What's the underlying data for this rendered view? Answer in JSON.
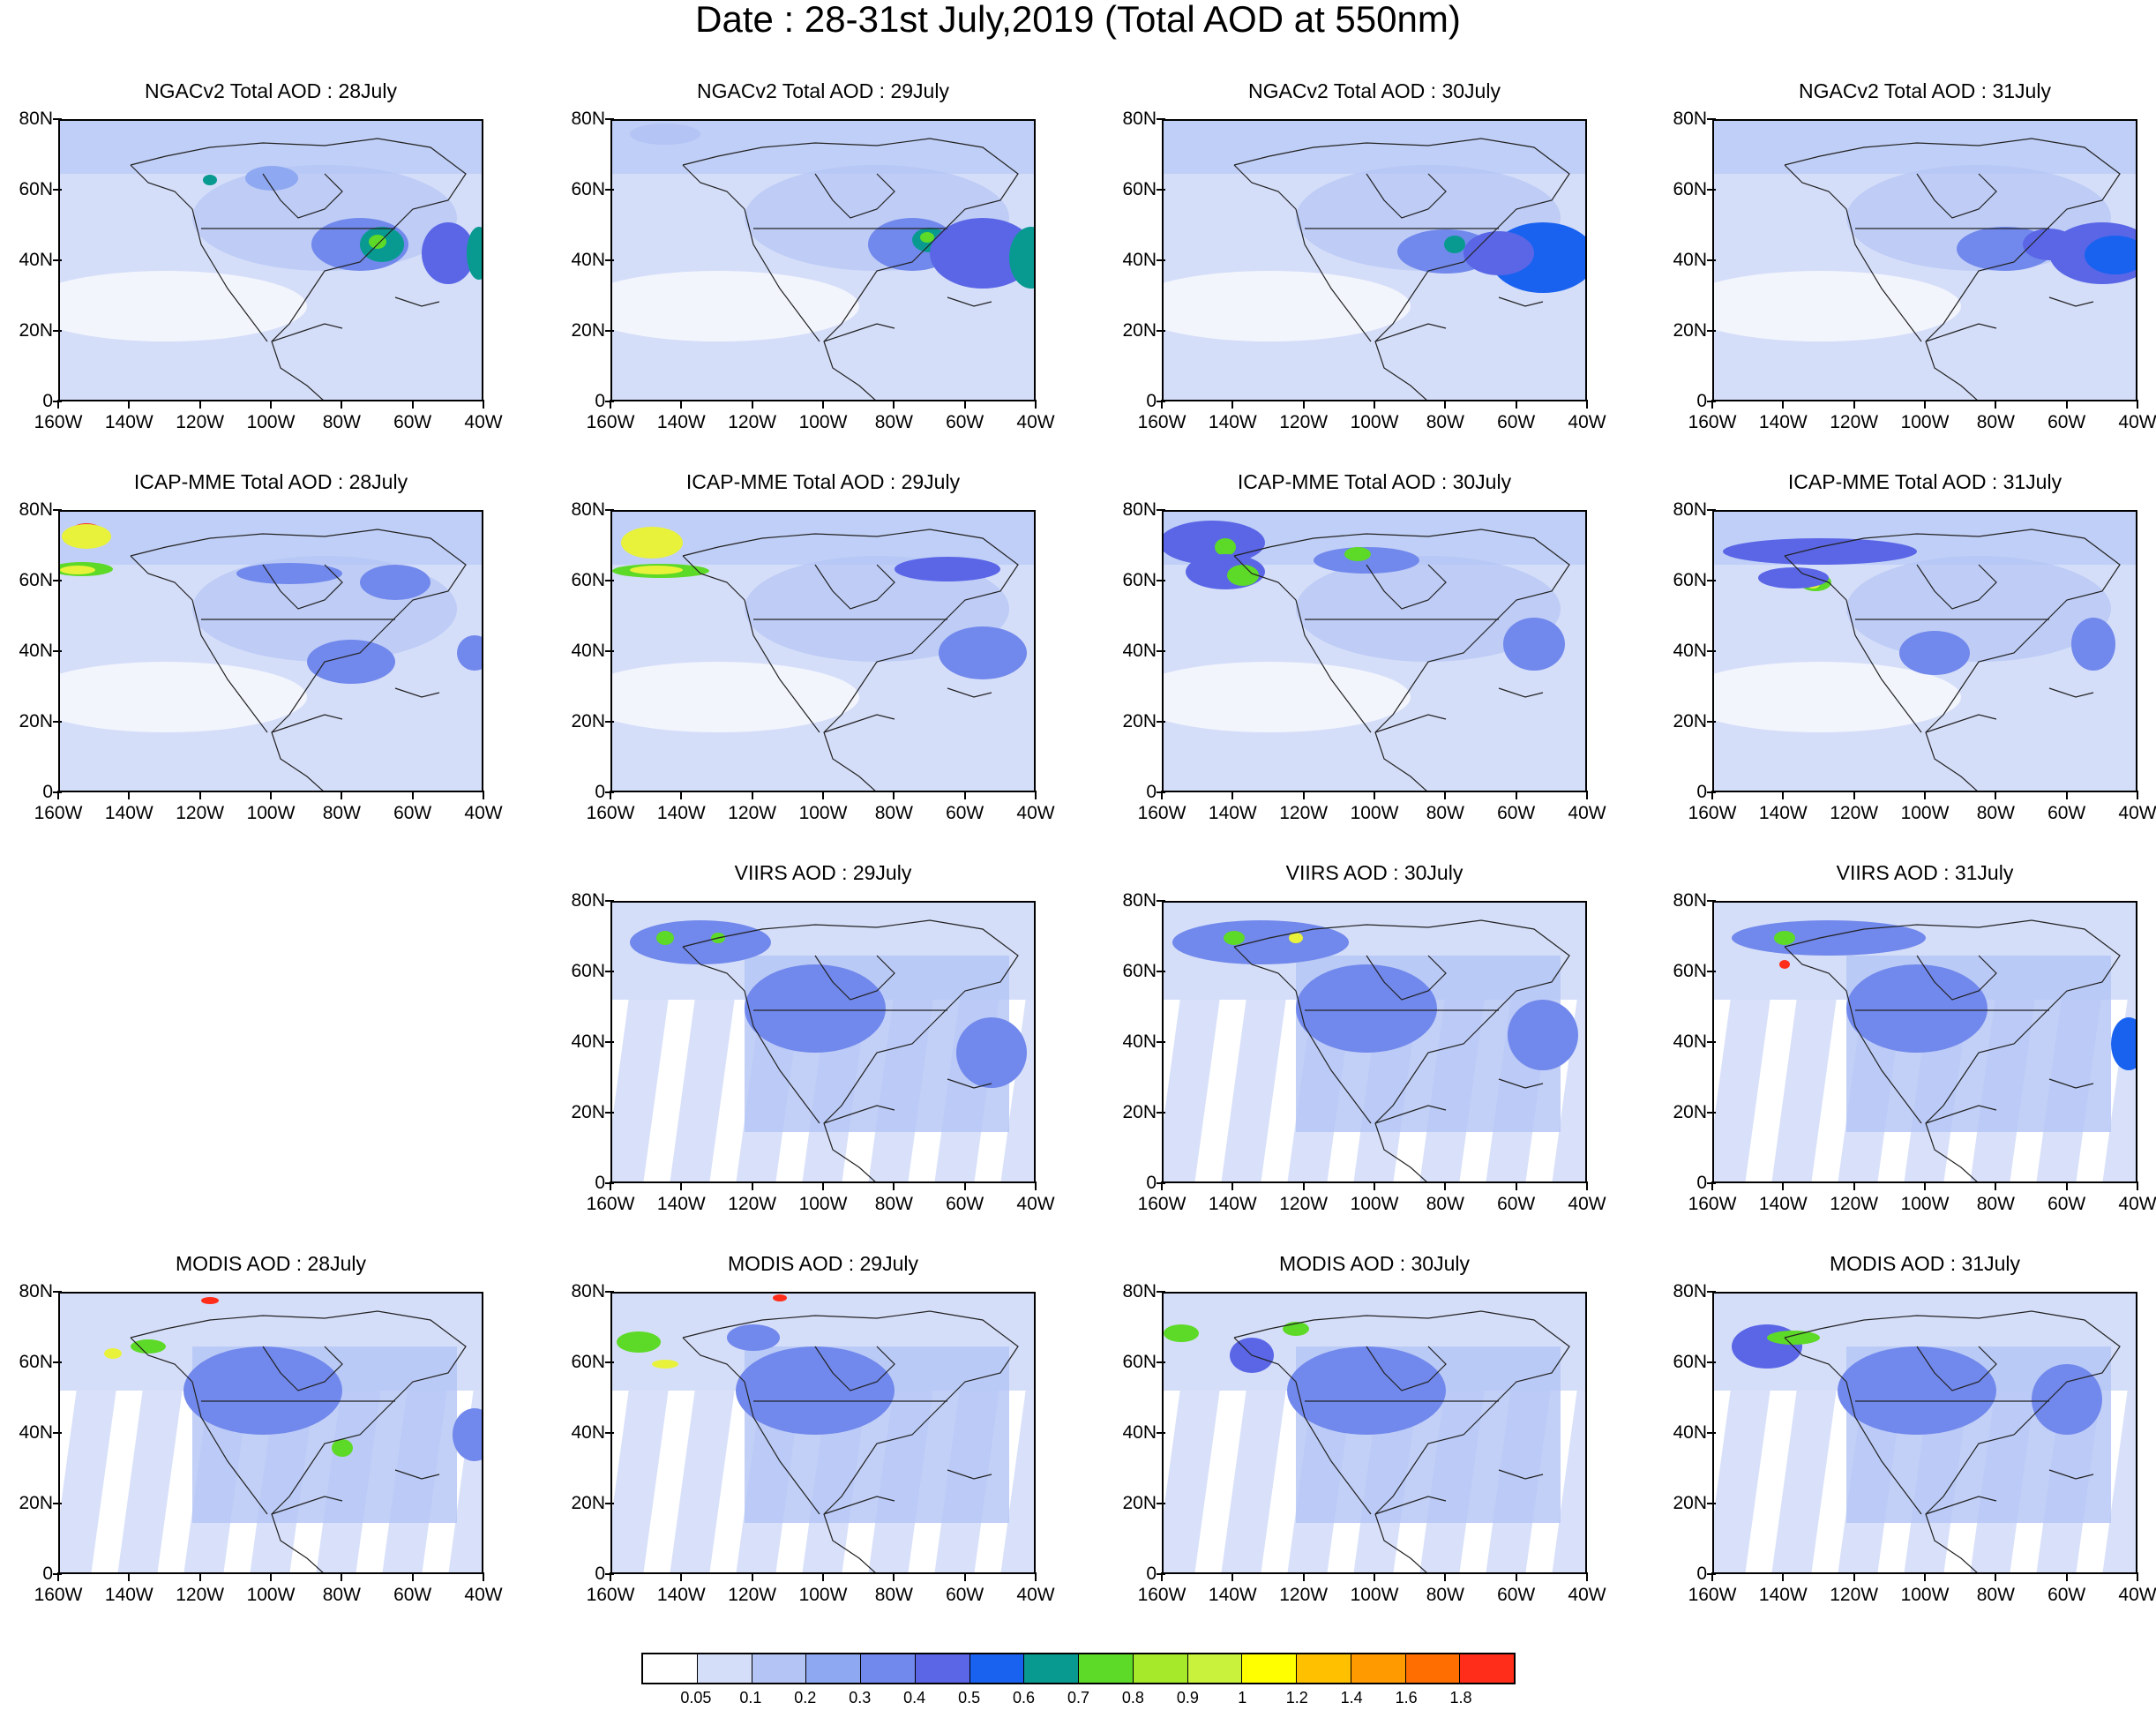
{
  "title": "Date : 28-31st July,2019 (Total AOD at 550nm)",
  "lat_labels": [
    "80N",
    "60N",
    "40N",
    "20N",
    "0"
  ],
  "lon_labels": [
    "160W",
    "140W",
    "120W",
    "100W",
    "80W",
    "60W",
    "40W"
  ],
  "palette": {
    "p1": "#d5def9",
    "p2": "#b3c4f5",
    "p3": "#8ea8f1",
    "p4": "#7188ec",
    "p5": "#5a66e6",
    "p6": "#1962f0",
    "p7": "#089a90",
    "p8": "#5dd927",
    "p9": "#a6e92b",
    "p10": "#e8f23a",
    "p11": "#f6a21c",
    "p12": "#ff2d1a"
  },
  "panels": [
    {
      "row": 0,
      "col": 0,
      "title": "NGACv2 Total AOD : 28July",
      "plumes": [
        [
          "p4",
          340,
          140,
          55,
          30
        ],
        [
          "p7",
          365,
          140,
          25,
          20
        ],
        [
          "p8",
          360,
          137,
          10,
          8
        ],
        [
          "p3",
          240,
          65,
          30,
          14
        ],
        [
          "p7",
          170,
          67,
          8,
          6
        ],
        [
          "p5",
          440,
          150,
          30,
          35
        ],
        [
          "p7",
          475,
          150,
          14,
          30
        ]
      ]
    },
    {
      "row": 0,
      "col": 1,
      "title": "NGACv2 Total AOD : 29July",
      "plumes": [
        [
          "p4",
          340,
          140,
          50,
          30
        ],
        [
          "p7",
          360,
          135,
          20,
          14
        ],
        [
          "p8",
          357,
          132,
          8,
          6
        ],
        [
          "p5",
          420,
          150,
          60,
          40
        ],
        [
          "p7",
          475,
          155,
          25,
          35
        ],
        [
          "p2",
          60,
          15,
          40,
          12
        ]
      ]
    },
    {
      "row": 0,
      "col": 2,
      "title": "NGACv2 Total AOD : 30July",
      "plumes": [
        [
          "p4",
          320,
          148,
          55,
          25
        ],
        [
          "p7",
          330,
          140,
          12,
          10
        ],
        [
          "p6",
          430,
          155,
          60,
          40
        ],
        [
          "p5",
          380,
          150,
          40,
          25
        ]
      ]
    },
    {
      "row": 0,
      "col": 3,
      "title": "NGACv2 Total AOD : 31July",
      "plumes": [
        [
          "p4",
          330,
          145,
          55,
          25
        ],
        [
          "p5",
          440,
          150,
          60,
          35
        ],
        [
          "p6",
          455,
          152,
          35,
          22
        ],
        [
          "p5",
          380,
          140,
          30,
          18
        ]
      ]
    },
    {
      "row": 1,
      "col": 0,
      "title": "ICAP-MME Total AOD : 28July",
      "plumes": [
        [
          "p12",
          30,
          25,
          20,
          12
        ],
        [
          "p10",
          30,
          28,
          28,
          14
        ],
        [
          "p8",
          25,
          65,
          35,
          8
        ],
        [
          "p10",
          20,
          66,
          20,
          5
        ],
        [
          "p4",
          260,
          70,
          60,
          12
        ],
        [
          "p4",
          380,
          80,
          40,
          20
        ],
        [
          "p4",
          330,
          170,
          50,
          25
        ],
        [
          "p4",
          470,
          160,
          20,
          20
        ]
      ]
    },
    {
      "row": 1,
      "col": 1,
      "title": "ICAP-MME Total AOD : 29July",
      "plumes": [
        [
          "p12",
          55,
          38,
          15,
          10
        ],
        [
          "p10",
          45,
          35,
          35,
          18
        ],
        [
          "p8",
          55,
          67,
          55,
          8
        ],
        [
          "p10",
          50,
          66,
          30,
          5
        ],
        [
          "p5",
          380,
          65,
          60,
          14
        ],
        [
          "p4",
          420,
          160,
          50,
          30
        ]
      ]
    },
    {
      "row": 1,
      "col": 2,
      "title": "ICAP-MME Total AOD : 30July",
      "plumes": [
        [
          "p5",
          55,
          35,
          60,
          25
        ],
        [
          "p8",
          70,
          40,
          12,
          10
        ],
        [
          "p5",
          70,
          68,
          45,
          20
        ],
        [
          "p8",
          90,
          72,
          18,
          12
        ],
        [
          "p4",
          230,
          55,
          60,
          15
        ],
        [
          "p8",
          220,
          48,
          15,
          8
        ],
        [
          "p4",
          420,
          150,
          35,
          30
        ]
      ]
    },
    {
      "row": 1,
      "col": 3,
      "title": "ICAP-MME Total AOD : 31July",
      "plumes": [
        [
          "p5",
          120,
          45,
          110,
          15
        ],
        [
          "p8",
          115,
          80,
          18,
          10
        ],
        [
          "p10",
          112,
          82,
          8,
          5
        ],
        [
          "p5",
          90,
          75,
          40,
          12
        ],
        [
          "p4",
          430,
          150,
          25,
          30
        ],
        [
          "p4",
          250,
          160,
          40,
          25
        ]
      ]
    },
    {
      "row": 2,
      "col": 1,
      "title": "VIIRS AOD : 29July",
      "swath": true,
      "plumes": [
        [
          "p4",
          100,
          45,
          80,
          25
        ],
        [
          "p8",
          60,
          40,
          10,
          8
        ],
        [
          "p8",
          120,
          40,
          8,
          6
        ],
        [
          "p4",
          230,
          120,
          80,
          50
        ],
        [
          "p4",
          430,
          170,
          40,
          40
        ]
      ]
    },
    {
      "row": 2,
      "col": 2,
      "title": "VIIRS AOD : 30July",
      "swath": true,
      "plumes": [
        [
          "p4",
          110,
          45,
          100,
          25
        ],
        [
          "p8",
          80,
          40,
          12,
          8
        ],
        [
          "p10",
          150,
          40,
          8,
          6
        ],
        [
          "p4",
          230,
          120,
          80,
          50
        ],
        [
          "p4",
          430,
          150,
          40,
          40
        ]
      ]
    },
    {
      "row": 2,
      "col": 3,
      "title": "VIIRS AOD : 31July",
      "swath": true,
      "plumes": [
        [
          "p4",
          130,
          40,
          110,
          20
        ],
        [
          "p8",
          80,
          40,
          12,
          8
        ],
        [
          "p12",
          80,
          70,
          6,
          5
        ],
        [
          "p4",
          230,
          120,
          80,
          50
        ],
        [
          "p6",
          470,
          160,
          20,
          30
        ]
      ]
    },
    {
      "row": 3,
      "col": 0,
      "title": "MODIS AOD : 28July",
      "swath": true,
      "plumes": [
        [
          "p8",
          100,
          60,
          20,
          8
        ],
        [
          "p10",
          60,
          68,
          10,
          6
        ],
        [
          "p4",
          230,
          110,
          90,
          50
        ],
        [
          "p8",
          320,
          175,
          12,
          10
        ],
        [
          "p4",
          470,
          160,
          25,
          30
        ],
        [
          "p12",
          170,
          8,
          10,
          4
        ]
      ]
    },
    {
      "row": 3,
      "col": 1,
      "title": "MODIS AOD : 29July",
      "swath": true,
      "plumes": [
        [
          "p8",
          30,
          55,
          25,
          12
        ],
        [
          "p10",
          60,
          80,
          15,
          5
        ],
        [
          "p4",
          160,
          50,
          30,
          15
        ],
        [
          "p4",
          230,
          110,
          90,
          50
        ],
        [
          "p12",
          190,
          5,
          8,
          4
        ]
      ]
    },
    {
      "row": 3,
      "col": 2,
      "title": "MODIS AOD : 30July",
      "swath": true,
      "plumes": [
        [
          "p5",
          100,
          70,
          25,
          20
        ],
        [
          "p8",
          20,
          45,
          20,
          10
        ],
        [
          "p8",
          150,
          40,
          15,
          8
        ],
        [
          "p4",
          230,
          110,
          90,
          50
        ]
      ]
    },
    {
      "row": 3,
      "col": 3,
      "title": "MODIS AOD : 31July",
      "swath": true,
      "plumes": [
        [
          "p5",
          60,
          60,
          40,
          25
        ],
        [
          "p8",
          90,
          50,
          30,
          8
        ],
        [
          "p4",
          230,
          110,
          90,
          50
        ],
        [
          "p4",
          400,
          120,
          40,
          40
        ]
      ]
    }
  ],
  "colorbar": {
    "colors": [
      "#ffffff",
      "#d5def9",
      "#b3c4f5",
      "#8ea8f1",
      "#7188ec",
      "#5a66e6",
      "#1962f0",
      "#089a90",
      "#5dd927",
      "#a6e92b",
      "#c8f23c",
      "#ffff00",
      "#ffc000",
      "#ff9a00",
      "#ff6e00",
      "#ff2d1a"
    ],
    "labels": [
      "0.05",
      "0.1",
      "0.2",
      "0.3",
      "0.4",
      "0.5",
      "0.6",
      "0.7",
      "0.8",
      "0.9",
      "1",
      "1.2",
      "1.4",
      "1.6",
      "1.8"
    ]
  }
}
